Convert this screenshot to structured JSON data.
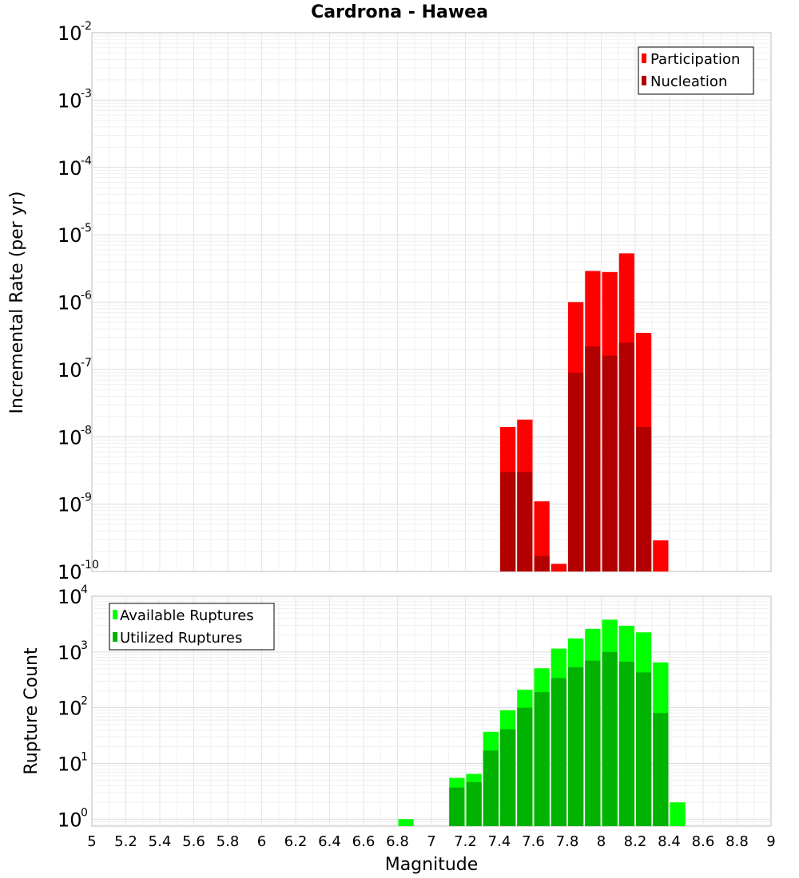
{
  "chart_data": {
    "type": "bar",
    "title": "Cardrona - Hawea",
    "xlabel": "Magnitude",
    "x_ticks": [
      "5",
      "5.2",
      "5.4",
      "5.6",
      "5.8",
      "6",
      "6.2",
      "6.4",
      "6.6",
      "6.8",
      "7",
      "7.2",
      "7.4",
      "7.6",
      "7.8",
      "8",
      "8.2",
      "8.4",
      "8.6",
      "8.8",
      "9"
    ],
    "xlim": [
      5,
      9
    ],
    "bin_width": 0.1,
    "grid": true,
    "panels": [
      {
        "ylabel": "Incremental Rate (per yr)",
        "yscale": "log",
        "ylim": [
          1e-10,
          0.01
        ],
        "y_tick_exponents": [
          "-10",
          "-9",
          "-8",
          "-7",
          "-6",
          "-5",
          "-4",
          "-3",
          "-2"
        ],
        "legend_position": "top-right",
        "x": [
          7.45,
          7.55,
          7.65,
          7.75,
          7.85,
          7.95,
          8.05,
          8.15,
          8.25,
          8.35
        ],
        "series": [
          {
            "name": "Participation",
            "color": "#ff0000",
            "values": [
              1.4e-08,
              1.8e-08,
              1.1e-09,
              1.3e-10,
              1e-06,
              2.9e-06,
              2.8e-06,
              5.3e-06,
              3.5e-07,
              2.9e-10
            ]
          },
          {
            "name": "Nucleation",
            "color": "#b20000",
            "values": [
              3e-09,
              3e-09,
              1.7e-10,
              null,
              9e-08,
              2.2e-07,
              1.6e-07,
              2.5e-07,
              1.4e-08,
              null
            ]
          }
        ]
      },
      {
        "ylabel": "Rupture Count",
        "yscale": "log",
        "ylim": [
          0.75,
          10000
        ],
        "y_tick_exponents": [
          "0",
          "1",
          "2",
          "3",
          "4"
        ],
        "legend_position": "top-left",
        "x": [
          6.85,
          7.15,
          7.25,
          7.35,
          7.45,
          7.55,
          7.65,
          7.75,
          7.85,
          7.95,
          8.05,
          8.15,
          8.25,
          8.35,
          8.45
        ],
        "series": [
          {
            "name": "Available Ruptures",
            "color": "#00ff00",
            "values": [
              1,
              5.5,
              6.5,
              37,
              90,
              210,
              510,
              1150,
              1750,
              2600,
              3800,
              2950,
              2250,
              650,
              2
            ]
          },
          {
            "name": "Utilized Ruptures",
            "color": "#00b300",
            "values": [
              null,
              3.7,
              4.6,
              17,
              41,
              100,
              190,
              340,
              530,
              700,
              1000,
              670,
              430,
              80,
              null
            ]
          }
        ]
      }
    ]
  }
}
